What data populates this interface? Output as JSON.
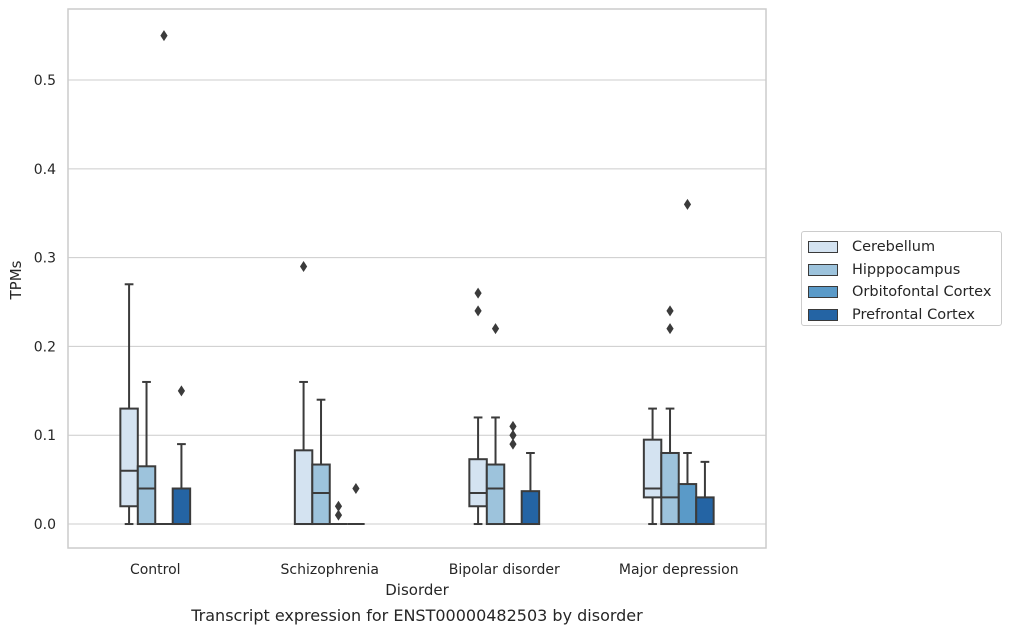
{
  "chart_data": {
    "type": "box",
    "title": "",
    "caption": "Transcript expression for ENST00000482503 by disorder",
    "xlabel": "Disorder",
    "ylabel": "TPMs",
    "ylim": [
      -0.027,
      0.58
    ],
    "yticks": [
      0.0,
      0.1,
      0.2,
      0.3,
      0.4,
      0.5
    ],
    "ytick_labels": [
      "0.0",
      "0.1",
      "0.2",
      "0.3",
      "0.4",
      "0.5"
    ],
    "grid": "horizontal",
    "legend_position": "right",
    "categories": [
      "Control",
      "Schizophrenia",
      "Bipolar disorder",
      "Major depression"
    ],
    "series": [
      {
        "name": "Cerebellum",
        "color": "#d4e3f1",
        "boxes": [
          {
            "whislo": 0.0,
            "q1": 0.02,
            "med": 0.06,
            "q3": 0.13,
            "whishi": 0.27,
            "fliers": []
          },
          {
            "whislo": 0.0,
            "q1": 0.0,
            "med": 0.0,
            "q3": 0.083,
            "whishi": 0.16,
            "fliers": [
              0.29
            ]
          },
          {
            "whislo": 0.0,
            "q1": 0.02,
            "med": 0.035,
            "q3": 0.073,
            "whishi": 0.12,
            "fliers": [
              0.26,
              0.24
            ]
          },
          {
            "whislo": 0.0,
            "q1": 0.03,
            "med": 0.04,
            "q3": 0.095,
            "whishi": 0.13,
            "fliers": []
          }
        ]
      },
      {
        "name": "Hipppocampus",
        "color": "#9dc3dc",
        "boxes": [
          {
            "whislo": 0.0,
            "q1": 0.0,
            "med": 0.04,
            "q3": 0.065,
            "whishi": 0.16,
            "fliers": []
          },
          {
            "whislo": 0.0,
            "q1": 0.0,
            "med": 0.035,
            "q3": 0.067,
            "whishi": 0.14,
            "fliers": []
          },
          {
            "whislo": 0.0,
            "q1": 0.0,
            "med": 0.04,
            "q3": 0.067,
            "whishi": 0.12,
            "fliers": [
              0.22
            ]
          },
          {
            "whislo": 0.0,
            "q1": 0.0,
            "med": 0.03,
            "q3": 0.08,
            "whishi": 0.13,
            "fliers": [
              0.24,
              0.22
            ]
          }
        ]
      },
      {
        "name": "Orbitofontal Cortex",
        "color": "#5a9ac8",
        "boxes": [
          {
            "whislo": 0.0,
            "q1": 0.0,
            "med": 0.0,
            "q3": 0.0,
            "whishi": 0.0,
            "fliers": [
              0.55
            ]
          },
          {
            "whislo": 0.0,
            "q1": 0.0,
            "med": 0.0,
            "q3": 0.0,
            "whishi": 0.0,
            "fliers": [
              0.02,
              0.01
            ]
          },
          {
            "whislo": 0.0,
            "q1": 0.0,
            "med": 0.0,
            "q3": 0.0,
            "whishi": 0.0,
            "fliers": [
              0.11,
              0.1,
              0.09
            ]
          },
          {
            "whislo": 0.0,
            "q1": 0.0,
            "med": 0.0,
            "q3": 0.045,
            "whishi": 0.08,
            "fliers": [
              0.36
            ]
          }
        ]
      },
      {
        "name": "Prefrontal Cortex",
        "color": "#2464a4",
        "boxes": [
          {
            "whislo": 0.0,
            "q1": 0.0,
            "med": 0.0,
            "q3": 0.04,
            "whishi": 0.09,
            "fliers": [
              0.15
            ]
          },
          {
            "whislo": 0.0,
            "q1": 0.0,
            "med": 0.0,
            "q3": 0.0,
            "whishi": 0.0,
            "fliers": [
              0.04
            ]
          },
          {
            "whislo": 0.0,
            "q1": 0.0,
            "med": 0.0,
            "q3": 0.037,
            "whishi": 0.08,
            "fliers": []
          },
          {
            "whislo": 0.0,
            "q1": 0.0,
            "med": 0.0,
            "q3": 0.03,
            "whishi": 0.07,
            "fliers": []
          }
        ]
      }
    ]
  }
}
